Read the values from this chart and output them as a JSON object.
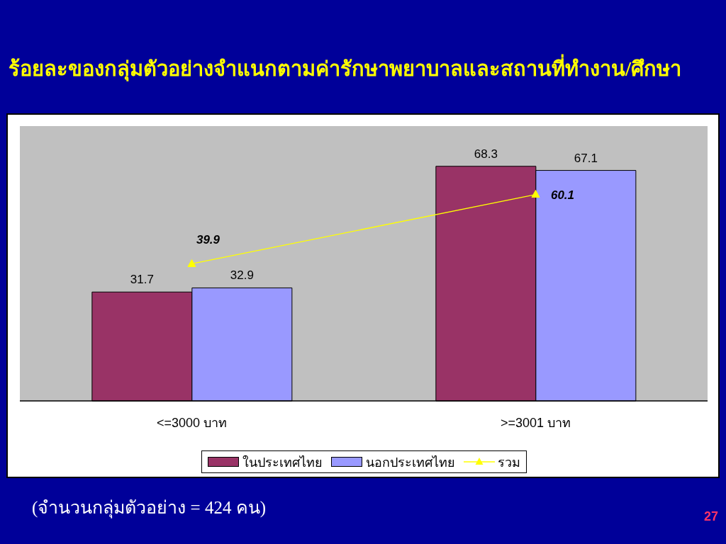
{
  "chart_data": {
    "type": "bar",
    "title": "ร้อยละของกลุ่มตัวอย่างจำแนกตามค่ารักษาพยาบาลและสถานที่ทำงาน/ศึกษา",
    "categories": [
      "<=3000 บาท",
      ">=3001 บาท"
    ],
    "series": [
      {
        "name": "ในประเทศไทย",
        "color": "#993366",
        "values": [
          31.7,
          68.3
        ]
      },
      {
        "name": "นอกประเทศไทย",
        "color": "#9999ff",
        "values": [
          32.9,
          67.1
        ]
      },
      {
        "name": "รวม",
        "type": "line",
        "color": "#ffff00",
        "values": [
          39.9,
          60.1
        ]
      }
    ],
    "marker": "triangle",
    "data_labels": true,
    "legend": "bottom",
    "annotations": [
      "(จำนวนกลุ่มตัวอย่าง = 424 คน)",
      "27"
    ]
  }
}
